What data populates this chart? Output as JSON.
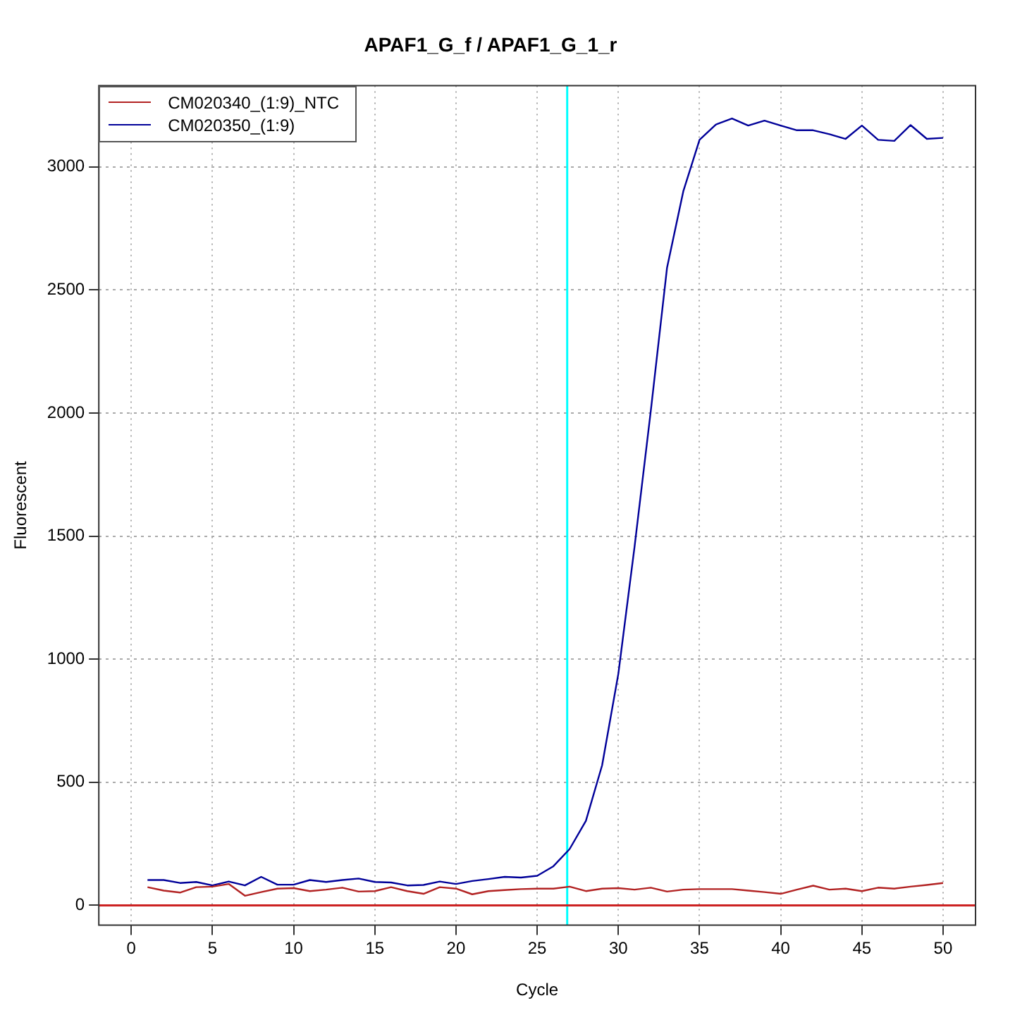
{
  "chart_data": {
    "type": "line",
    "title": "APAF1_G_f / APAF1_G_1_r",
    "xlabel": "Cycle",
    "ylabel": "Fluorescent",
    "x": [
      1,
      2,
      3,
      4,
      5,
      6,
      7,
      8,
      9,
      10,
      11,
      12,
      13,
      14,
      15,
      16,
      17,
      18,
      19,
      20,
      21,
      22,
      23,
      24,
      25,
      26,
      27,
      28,
      29,
      30,
      31,
      32,
      33,
      34,
      35,
      36,
      37,
      38,
      39,
      40,
      41,
      42,
      43,
      44,
      45,
      46,
      47,
      48,
      49,
      50
    ],
    "series": [
      {
        "name": "CM020340_(1:9)_NTC",
        "color": "#b22222",
        "values": [
          74,
          60,
          52,
          74,
          76,
          87,
          39,
          54,
          68,
          70,
          58,
          64,
          72,
          56,
          58,
          74,
          58,
          47,
          74,
          68,
          45,
          58,
          62,
          66,
          68,
          68,
          76,
          58,
          68,
          70,
          64,
          72,
          56,
          64,
          66,
          66,
          66,
          60,
          54,
          47,
          64,
          80,
          64,
          68,
          58,
          72,
          68,
          76,
          83,
          91
        ]
      },
      {
        "name": "CM020350_(1:9)",
        "color": "#000099",
        "values": [
          103,
          103,
          91,
          95,
          81,
          97,
          81,
          116,
          84,
          84,
          103,
          95,
          103,
          109,
          95,
          93,
          81,
          83,
          97,
          87,
          99,
          107,
          116,
          113,
          120,
          159,
          229,
          343,
          569,
          941,
          1458,
          2010,
          2591,
          2901,
          3110,
          3172,
          3197,
          3168,
          3188,
          3168,
          3149,
          3149,
          3133,
          3114,
          3168,
          3110,
          3106,
          3170,
          3114,
          3118
        ]
      }
    ],
    "xlim": [
      -2,
      52
    ],
    "xticks": [
      0,
      5,
      10,
      15,
      20,
      25,
      30,
      35,
      40,
      45,
      50
    ],
    "ylim": [
      -80,
      3330
    ],
    "yticks": [
      0,
      500,
      1000,
      1500,
      2000,
      2500,
      3000
    ],
    "grid": true,
    "legend": "top left",
    "marker": "none",
    "line_style": "solid",
    "ref_lines": [
      {
        "axis": "x",
        "value": 26.85,
        "color": "#00ffff"
      },
      {
        "axis": "y",
        "value": 0,
        "color": "#cc2222"
      }
    ]
  }
}
